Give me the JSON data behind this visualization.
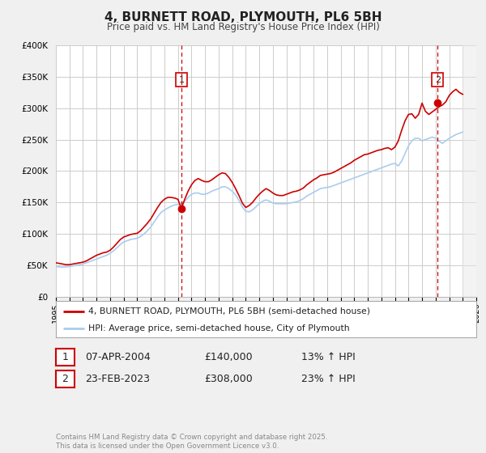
{
  "title": "4, BURNETT ROAD, PLYMOUTH, PL6 5BH",
  "subtitle": "Price paid vs. HM Land Registry's House Price Index (HPI)",
  "background_color": "#f0f0f0",
  "plot_bg_color": "#ffffff",
  "red_color": "#cc0000",
  "blue_color": "#aaccee",
  "grid_color": "#cccccc",
  "ylim": [
    0,
    400000
  ],
  "yticks": [
    0,
    50000,
    100000,
    150000,
    200000,
    250000,
    300000,
    350000,
    400000
  ],
  "ytick_labels": [
    "£0",
    "£50K",
    "£100K",
    "£150K",
    "£200K",
    "£250K",
    "£300K",
    "£350K",
    "£400K"
  ],
  "xlim_start": 1995,
  "xlim_end": 2026,
  "marker1_x": 2004.27,
  "marker1_y": 140000,
  "marker2_x": 2023.15,
  "marker2_y": 308000,
  "vline1_x": 2004.27,
  "vline2_x": 2023.15,
  "legend_label_red": "4, BURNETT ROAD, PLYMOUTH, PL6 5BH (semi-detached house)",
  "legend_label_blue": "HPI: Average price, semi-detached house, City of Plymouth",
  "annotation1_label": "1",
  "annotation2_label": "2",
  "table_row1": [
    "1",
    "07-APR-2004",
    "£140,000",
    "13% ↑ HPI"
  ],
  "table_row2": [
    "2",
    "23-FEB-2023",
    "£308,000",
    "23% ↑ HPI"
  ],
  "footnote": "Contains HM Land Registry data © Crown copyright and database right 2025.\nThis data is licensed under the Open Government Licence v3.0.",
  "hpi_data_x": [
    1995.0,
    1995.25,
    1995.5,
    1995.75,
    1996.0,
    1996.25,
    1996.5,
    1996.75,
    1997.0,
    1997.25,
    1997.5,
    1997.75,
    1998.0,
    1998.25,
    1998.5,
    1998.75,
    1999.0,
    1999.25,
    1999.5,
    1999.75,
    2000.0,
    2000.25,
    2000.5,
    2000.75,
    2001.0,
    2001.25,
    2001.5,
    2001.75,
    2002.0,
    2002.25,
    2002.5,
    2002.75,
    2003.0,
    2003.25,
    2003.5,
    2003.75,
    2004.0,
    2004.25,
    2004.5,
    2004.75,
    2005.0,
    2005.25,
    2005.5,
    2005.75,
    2006.0,
    2006.25,
    2006.5,
    2006.75,
    2007.0,
    2007.25,
    2007.5,
    2007.75,
    2008.0,
    2008.25,
    2008.5,
    2008.75,
    2009.0,
    2009.25,
    2009.5,
    2009.75,
    2010.0,
    2010.25,
    2010.5,
    2010.75,
    2011.0,
    2011.25,
    2011.5,
    2011.75,
    2012.0,
    2012.25,
    2012.5,
    2012.75,
    2013.0,
    2013.25,
    2013.5,
    2013.75,
    2014.0,
    2014.25,
    2014.5,
    2014.75,
    2015.0,
    2015.25,
    2015.5,
    2015.75,
    2016.0,
    2016.25,
    2016.5,
    2016.75,
    2017.0,
    2017.25,
    2017.5,
    2017.75,
    2018.0,
    2018.25,
    2018.5,
    2018.75,
    2019.0,
    2019.25,
    2019.5,
    2019.75,
    2020.0,
    2020.25,
    2020.5,
    2020.75,
    2021.0,
    2021.25,
    2021.5,
    2021.75,
    2022.0,
    2022.25,
    2022.5,
    2022.75,
    2023.0,
    2023.25,
    2023.5,
    2023.75,
    2024.0,
    2024.25,
    2024.5,
    2024.75,
    2025.0
  ],
  "hpi_data_y": [
    48000,
    47500,
    47000,
    47500,
    48000,
    49000,
    50000,
    51000,
    52000,
    54000,
    56000,
    58000,
    60000,
    62000,
    64000,
    66000,
    69000,
    73000,
    78000,
    83000,
    87000,
    89000,
    91000,
    92000,
    93000,
    96000,
    100000,
    105000,
    111000,
    119000,
    127000,
    134000,
    138000,
    141000,
    144000,
    146000,
    147000,
    148000,
    152000,
    158000,
    163000,
    165000,
    165000,
    163000,
    163000,
    165000,
    168000,
    170000,
    172000,
    175000,
    175000,
    172000,
    168000,
    162000,
    153000,
    143000,
    136000,
    135000,
    138000,
    143000,
    148000,
    152000,
    154000,
    152000,
    149000,
    148000,
    148000,
    148000,
    148000,
    149000,
    150000,
    151000,
    153000,
    156000,
    160000,
    163000,
    166000,
    169000,
    172000,
    173000,
    174000,
    175000,
    177000,
    179000,
    181000,
    183000,
    185000,
    187000,
    189000,
    191000,
    193000,
    195000,
    197000,
    199000,
    201000,
    203000,
    205000,
    207000,
    209000,
    211000,
    212000,
    208000,
    216000,
    228000,
    240000,
    248000,
    252000,
    252000,
    248000,
    250000,
    252000,
    254000,
    252000,
    248000,
    244000,
    248000,
    252000,
    255000,
    258000,
    260000,
    262000
  ],
  "price_data_x": [
    1995.0,
    1995.25,
    1995.5,
    1995.75,
    1996.0,
    1996.25,
    1996.5,
    1996.75,
    1997.0,
    1997.25,
    1997.5,
    1997.75,
    1998.0,
    1998.25,
    1998.5,
    1998.75,
    1999.0,
    1999.25,
    1999.5,
    1999.75,
    2000.0,
    2000.25,
    2000.5,
    2000.75,
    2001.0,
    2001.25,
    2001.5,
    2001.75,
    2002.0,
    2002.25,
    2002.5,
    2002.75,
    2003.0,
    2003.25,
    2003.5,
    2003.75,
    2004.0,
    2004.25,
    2004.5,
    2004.75,
    2005.0,
    2005.25,
    2005.5,
    2005.75,
    2006.0,
    2006.25,
    2006.5,
    2006.75,
    2007.0,
    2007.25,
    2007.5,
    2007.75,
    2008.0,
    2008.25,
    2008.5,
    2008.75,
    2009.0,
    2009.25,
    2009.5,
    2009.75,
    2010.0,
    2010.25,
    2010.5,
    2010.75,
    2011.0,
    2011.25,
    2011.5,
    2011.75,
    2012.0,
    2012.25,
    2012.5,
    2012.75,
    2013.0,
    2013.25,
    2013.5,
    2013.75,
    2014.0,
    2014.25,
    2014.5,
    2014.75,
    2015.0,
    2015.25,
    2015.5,
    2015.75,
    2016.0,
    2016.25,
    2016.5,
    2016.75,
    2017.0,
    2017.25,
    2017.5,
    2017.75,
    2018.0,
    2018.25,
    2018.5,
    2018.75,
    2019.0,
    2019.25,
    2019.5,
    2019.75,
    2020.0,
    2020.25,
    2020.5,
    2020.75,
    2021.0,
    2021.25,
    2021.5,
    2021.75,
    2022.0,
    2022.25,
    2022.5,
    2022.75,
    2023.0,
    2023.25,
    2023.5,
    2023.75,
    2024.0,
    2024.25,
    2024.5,
    2024.75,
    2025.0
  ],
  "price_data_y": [
    54000,
    53000,
    52000,
    51000,
    51000,
    52000,
    53000,
    54000,
    55000,
    57000,
    60000,
    63000,
    66000,
    68000,
    70000,
    71000,
    74000,
    79000,
    85000,
    91000,
    95000,
    97000,
    99000,
    100000,
    101000,
    105000,
    111000,
    117000,
    124000,
    133000,
    142000,
    150000,
    155000,
    158000,
    158000,
    157000,
    155000,
    140000,
    155000,
    168000,
    178000,
    185000,
    188000,
    185000,
    183000,
    183000,
    186000,
    190000,
    194000,
    197000,
    196000,
    190000,
    182000,
    172000,
    161000,
    149000,
    142000,
    145000,
    150000,
    157000,
    163000,
    168000,
    172000,
    169000,
    165000,
    162000,
    161000,
    161000,
    163000,
    165000,
    167000,
    168000,
    170000,
    173000,
    178000,
    182000,
    186000,
    189000,
    193000,
    194000,
    195000,
    196000,
    198000,
    201000,
    204000,
    207000,
    210000,
    213000,
    217000,
    220000,
    223000,
    226000,
    227000,
    229000,
    231000,
    233000,
    234000,
    236000,
    237000,
    234000,
    238000,
    248000,
    265000,
    280000,
    290000,
    291000,
    284000,
    290000,
    308000,
    295000,
    290000,
    294000,
    298000,
    302000,
    305000,
    310000,
    320000,
    326000,
    330000,
    325000,
    322000
  ]
}
